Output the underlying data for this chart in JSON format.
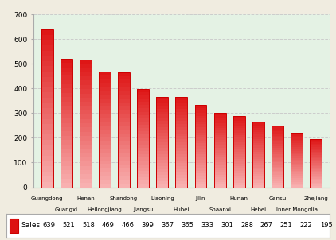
{
  "categories": [
    "Guangdong",
    "Guangxi",
    "Henan",
    "Heilongjiang",
    "Shandong",
    "Jiangsu",
    "Liaoning",
    "Hubei",
    "Jilin",
    "Shaanxi",
    "Hunan",
    "Hebei",
    "Gansu",
    "Inner Mongolia",
    "Zhejiang"
  ],
  "values": [
    639,
    521,
    518,
    469,
    466,
    399,
    367,
    365,
    333,
    301,
    288,
    267,
    251,
    222,
    195
  ],
  "bar_color_top": "#dd1111",
  "bar_color_bottom": "#f8b0b0",
  "ylim": [
    0,
    700
  ],
  "yticks": [
    0,
    100,
    200,
    300,
    400,
    500,
    600,
    700
  ],
  "grid_color": "#cccccc",
  "bg_color_plot": "#e4f2e4",
  "bg_color_fig": "#f0ece0",
  "legend_label": "Sales",
  "legend_values": [
    639,
    521,
    518,
    469,
    466,
    399,
    367,
    365,
    333,
    301,
    288,
    267,
    251,
    222,
    195
  ]
}
